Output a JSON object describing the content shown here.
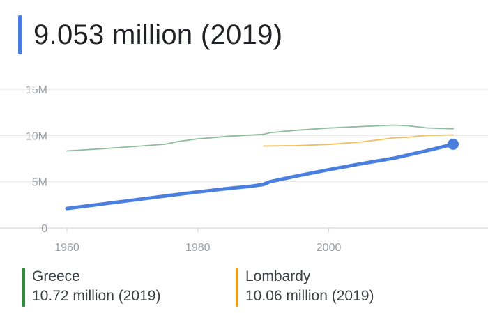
{
  "headline": {
    "value": "9.053 million (2019)",
    "color": "#4a7fe0"
  },
  "legend": [
    {
      "name": "Greece",
      "value": "10.72 million (2019)",
      "color": "#2e8b3a"
    },
    {
      "name": "Lombardy",
      "value": "10.06 million (2019)",
      "color": "#e8a020"
    }
  ],
  "chart_data": {
    "type": "line",
    "title": "",
    "xlabel": "",
    "ylabel": "",
    "xlim": [
      1960,
      2019
    ],
    "ylim": [
      0,
      15
    ],
    "x_ticks": [
      1960,
      1980,
      2000
    ],
    "y_ticks": [
      {
        "value": 0,
        "label": "0"
      },
      {
        "value": 5,
        "label": "5M"
      },
      {
        "value": 10,
        "label": "10M"
      },
      {
        "value": 15,
        "label": "15M"
      }
    ],
    "grid": true,
    "series": [
      {
        "name": "Greece",
        "color": "#8fbc9a",
        "x": [
          1960,
          1965,
          1970,
          1975,
          1977,
          1980,
          1985,
          1990,
          1991,
          1995,
          2000,
          2005,
          2010,
          2012,
          2015,
          2019
        ],
        "y": [
          8.33,
          8.55,
          8.79,
          9.05,
          9.35,
          9.64,
          9.93,
          10.12,
          10.3,
          10.56,
          10.8,
          10.97,
          11.12,
          11.05,
          10.82,
          10.72
        ]
      },
      {
        "name": "Lombardy",
        "color": "#f0c060",
        "x": [
          1990,
          1995,
          2000,
          2005,
          2010,
          2012,
          2015,
          2019
        ],
        "y": [
          8.86,
          8.9,
          9.03,
          9.3,
          9.75,
          9.8,
          10.01,
          10.06
        ]
      },
      {
        "name": "",
        "color": "#4a7fe0",
        "x": [
          1960,
          1965,
          1970,
          1975,
          1980,
          1985,
          1988,
          1990,
          1991,
          1995,
          2000,
          2005,
          2010,
          2015,
          2019
        ],
        "y": [
          2.1,
          2.55,
          3.0,
          3.45,
          3.9,
          4.3,
          4.5,
          4.7,
          5.0,
          5.6,
          6.3,
          6.95,
          7.55,
          8.35,
          9.053
        ]
      }
    ]
  }
}
